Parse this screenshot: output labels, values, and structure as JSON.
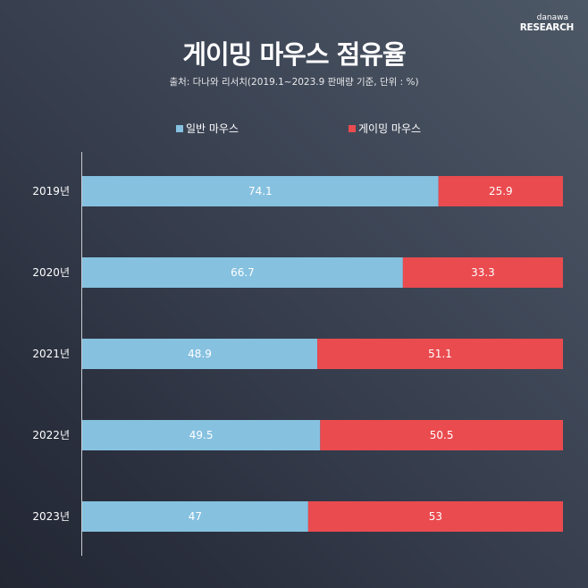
{
  "logo": {
    "line1": "danawa",
    "line2": "RESEARCH"
  },
  "chart_data": {
    "type": "bar",
    "orientation": "horizontal",
    "stacked": true,
    "title": "게이밍 마우스 점유율",
    "subtitle": "출처: 다나와 리서치(2019.1~2023.9 판매량 기준, 단위 : %)",
    "categories": [
      "2019년",
      "2020년",
      "2021년",
      "2022년",
      "2023년"
    ],
    "series": [
      {
        "name": "일반 마우스",
        "color": "#86c1e0",
        "values": [
          74.1,
          66.7,
          48.9,
          49.5,
          47
        ],
        "labels": [
          "74.1",
          "66.7",
          "48.9",
          "49.5",
          "47"
        ]
      },
      {
        "name": "게이밍 마우스",
        "color": "#ea4b4f",
        "values": [
          25.9,
          33.3,
          51.1,
          50.5,
          53
        ],
        "labels": [
          "25.9",
          "33.3",
          "51.1",
          "50.5",
          "53"
        ]
      }
    ],
    "xlim": [
      0,
      100
    ],
    "legend": "top",
    "grid": false
  }
}
